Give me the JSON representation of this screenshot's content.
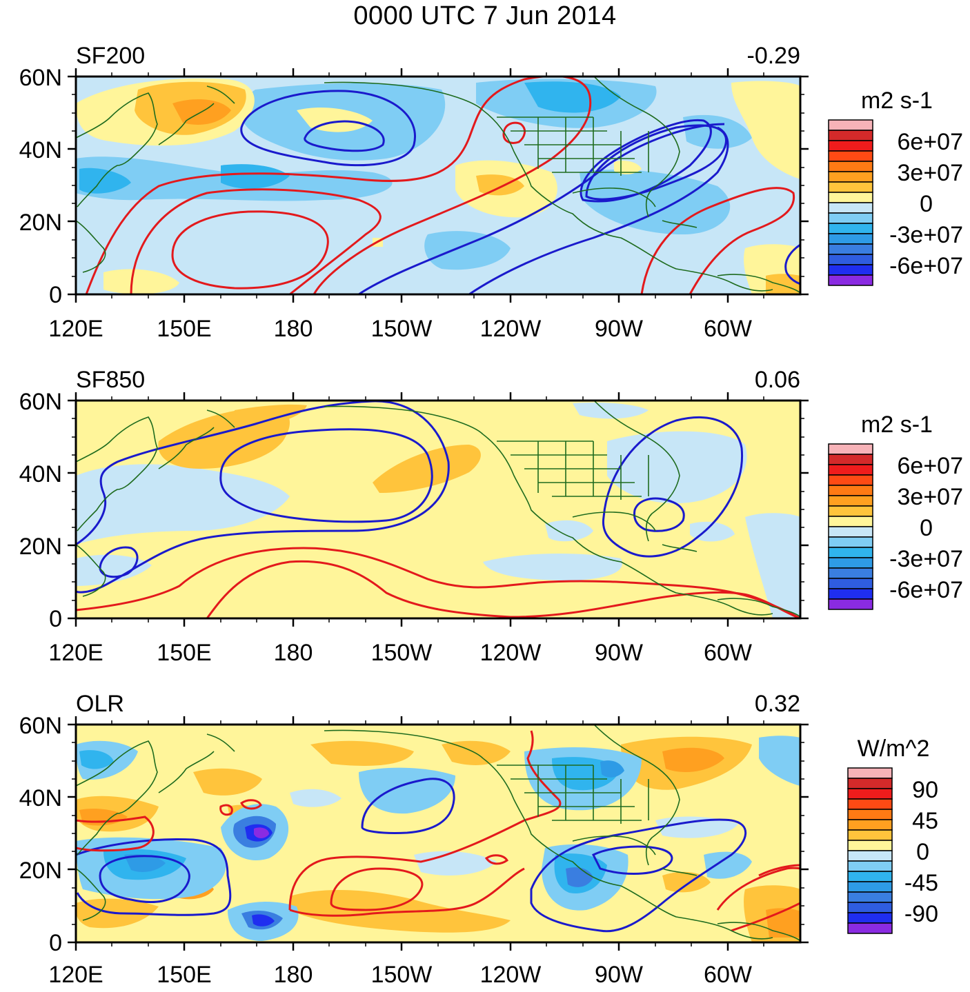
{
  "title": "0000 UTC 7 Jun 2014",
  "lon_labels": [
    "120E",
    "150E",
    "180",
    "150W",
    "120W",
    "90W",
    "60W"
  ],
  "lat_labels": [
    "60N",
    "40N",
    "20N",
    "0"
  ],
  "panels": [
    {
      "name": "SF200",
      "value": "-0.29",
      "units": "m2 s-1",
      "colorbar_labels": [
        "6e+07",
        "3e+07",
        "0",
        "-3e+07",
        "-6e+07"
      ]
    },
    {
      "name": "SF850",
      "value": "0.06",
      "units": "m2 s-1",
      "colorbar_labels": [
        "6e+07",
        "3e+07",
        "0",
        "-3e+07",
        "-6e+07"
      ]
    },
    {
      "name": "OLR",
      "value": "0.32",
      "units": "W/m^2",
      "colorbar_labels": [
        "90",
        "45",
        "0",
        "-45",
        "-90"
      ]
    }
  ],
  "colorbar_colors": [
    "#f7b3b8",
    "#d42a2a",
    "#f01c1c",
    "#ff4a14",
    "#ff7a14",
    "#ffa020",
    "#ffc43c",
    "#fff59a",
    "#c7e6f7",
    "#7fcdf4",
    "#30b4ee",
    "#2e9be6",
    "#3a7ee0",
    "#2f5de0",
    "#1f2ef0",
    "#8a2be2"
  ],
  "map_colors": {
    "coast": "#1e6b1e",
    "positive_contour": "#e3191c",
    "negative_contour": "#1a1acc"
  }
}
